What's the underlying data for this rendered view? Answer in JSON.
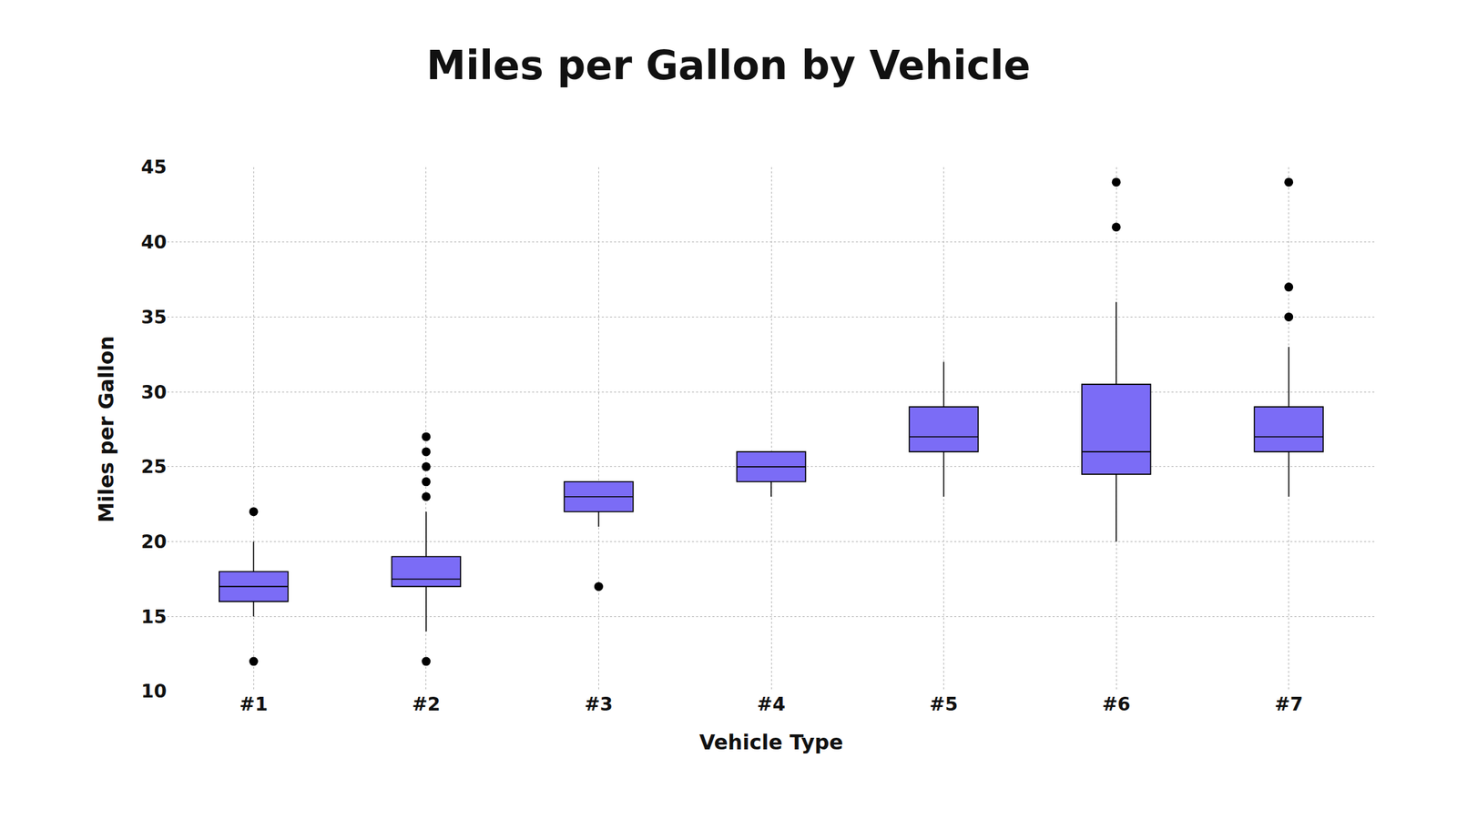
{
  "chart_data": {
    "type": "box",
    "title": "Miles per Gallon by Vehicle",
    "x_label": "Vehicle Type",
    "y_label": "Miles per Gallon",
    "categories": [
      "#1",
      "#2",
      "#3",
      "#4",
      "#5",
      "#6",
      "#7"
    ],
    "q1": [
      16,
      17,
      22,
      24,
      26,
      24.5,
      26
    ],
    "median": [
      17,
      17.5,
      23,
      25,
      27,
      26,
      27
    ],
    "q3": [
      18,
      19,
      24,
      26,
      29,
      30.5,
      29
    ],
    "lower_whisker": [
      15,
      14,
      21,
      23,
      23,
      20,
      23
    ],
    "upper_whisker": [
      20,
      22,
      24,
      26,
      32,
      36,
      33
    ],
    "outliers": [
      [
        22,
        12
      ],
      [
        27,
        26,
        25,
        24,
        23,
        12
      ],
      [
        17
      ],
      [],
      [],
      [
        44,
        41
      ],
      [
        44,
        37,
        35
      ]
    ],
    "color": "#7b6cf6",
    "marker": "circle",
    "ylim": [
      10,
      45
    ],
    "yticks": [
      10,
      15,
      20,
      25,
      30,
      35,
      40,
      45
    ],
    "grid": true
  }
}
